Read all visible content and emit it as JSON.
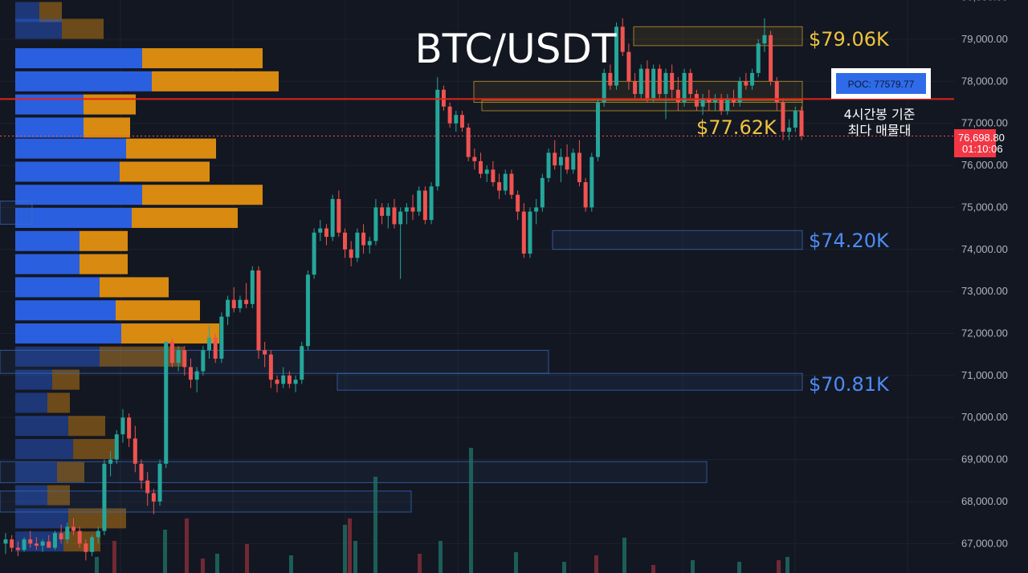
{
  "chart_data": {
    "type": "candlestick",
    "title": "BTC/USDT",
    "ylim": [
      66600,
      80050
    ],
    "y_ticks": [
      "80,000.00",
      "79,000.00",
      "78,000.00",
      "77,000.00",
      "76,000.00",
      "75,000.00",
      "74,000.00",
      "73,000.00",
      "72,000.00",
      "71,000.00",
      "70,000.00",
      "69,000.00",
      "68,000.00",
      "67,000.00"
    ],
    "y_tick_values": [
      80000,
      79000,
      78000,
      77000,
      76000,
      75000,
      74000,
      73000,
      72000,
      71000,
      70000,
      69000,
      68000,
      67000
    ],
    "current_price": {
      "label": "76,698.80",
      "timer": "01:10:06",
      "value": 76698.8
    },
    "poc": {
      "label": "POC: 77579.77",
      "value": 77579.77
    },
    "annotation": [
      "4시간봉 기준",
      "최다 매물대"
    ],
    "levels": [
      {
        "label": "$79.06K",
        "value": 79060,
        "color": "#f0c33c"
      },
      {
        "label": "$77.62K",
        "value": 77620,
        "color": "#f0c33c"
      },
      {
        "label": "$74.20K",
        "value": 74200,
        "color": "#4d8cf5"
      },
      {
        "label": "$70.81K",
        "value": 70810,
        "color": "#4d8cf5"
      }
    ],
    "candles": [
      [
        67.0,
        67.25,
        66.75,
        67.1
      ],
      [
        67.1,
        67.2,
        66.8,
        66.9
      ],
      [
        66.9,
        67.05,
        66.7,
        66.85
      ],
      [
        66.85,
        67.15,
        66.8,
        67.1
      ],
      [
        67.1,
        67.3,
        66.9,
        67.0
      ],
      [
        67.0,
        67.15,
        66.85,
        66.95
      ],
      [
        66.95,
        67.1,
        66.8,
        67.05
      ],
      [
        67.05,
        67.2,
        66.9,
        66.9
      ],
      [
        66.9,
        67.3,
        66.85,
        67.25
      ],
      [
        67.25,
        67.45,
        67.0,
        67.1
      ],
      [
        67.1,
        67.5,
        67.0,
        67.4
      ],
      [
        67.4,
        67.6,
        67.2,
        67.3
      ],
      [
        67.3,
        67.4,
        66.9,
        67.0
      ],
      [
        67.0,
        67.1,
        66.6,
        66.8
      ],
      [
        66.8,
        67.2,
        66.7,
        67.15
      ],
      [
        67.15,
        67.4,
        67.0,
        67.3
      ],
      [
        67.3,
        69.0,
        67.2,
        68.9
      ],
      [
        68.9,
        69.2,
        68.6,
        69.0
      ],
      [
        69.0,
        69.7,
        68.9,
        69.6
      ],
      [
        69.6,
        70.2,
        69.4,
        70.0
      ],
      [
        70.0,
        70.1,
        69.3,
        69.5
      ],
      [
        69.5,
        69.8,
        68.7,
        68.9
      ],
      [
        68.9,
        69.0,
        68.3,
        68.5
      ],
      [
        68.5,
        68.7,
        67.9,
        68.2
      ],
      [
        68.2,
        68.3,
        67.7,
        68.0
      ],
      [
        68.0,
        69.0,
        67.9,
        68.9
      ],
      [
        68.9,
        71.8,
        68.8,
        71.8
      ],
      [
        71.8,
        71.9,
        71.2,
        71.3
      ],
      [
        71.3,
        71.7,
        71.1,
        71.6
      ],
      [
        71.6,
        71.7,
        71.0,
        71.2
      ],
      [
        71.2,
        71.4,
        70.7,
        70.9
      ],
      [
        70.9,
        71.2,
        70.6,
        71.1
      ],
      [
        71.1,
        71.7,
        71.0,
        71.6
      ],
      [
        71.6,
        72.2,
        71.4,
        71.9
      ],
      [
        71.9,
        72.0,
        71.3,
        71.4
      ],
      [
        71.4,
        72.5,
        71.3,
        72.4
      ],
      [
        72.4,
        72.9,
        72.2,
        72.8
      ],
      [
        72.8,
        73.1,
        72.5,
        72.6
      ],
      [
        72.6,
        72.9,
        72.5,
        72.8
      ],
      [
        72.8,
        73.2,
        72.6,
        72.7
      ],
      [
        72.7,
        73.6,
        72.6,
        73.5
      ],
      [
        73.5,
        73.6,
        71.4,
        71.6
      ],
      [
        71.6,
        71.8,
        71.2,
        71.5
      ],
      [
        71.5,
        71.6,
        70.7,
        70.9
      ],
      [
        70.9,
        71.0,
        70.6,
        70.8
      ],
      [
        70.8,
        71.2,
        70.7,
        71.0
      ],
      [
        71.0,
        71.1,
        70.7,
        70.8
      ],
      [
        70.8,
        71.0,
        70.6,
        70.9
      ],
      [
        70.9,
        71.8,
        70.8,
        71.7
      ],
      [
        71.7,
        73.5,
        71.6,
        73.4
      ],
      [
        73.4,
        74.5,
        73.3,
        74.4
      ],
      [
        74.4,
        74.7,
        74.2,
        74.5
      ],
      [
        74.5,
        74.6,
        74.1,
        74.3
      ],
      [
        74.3,
        75.3,
        74.2,
        75.2
      ],
      [
        75.2,
        75.4,
        74.3,
        74.4
      ],
      [
        74.4,
        74.5,
        73.8,
        74.0
      ],
      [
        74.0,
        74.2,
        73.6,
        73.8
      ],
      [
        73.8,
        74.5,
        73.7,
        74.4
      ],
      [
        74.4,
        74.6,
        73.9,
        74.1
      ],
      [
        74.1,
        74.3,
        73.9,
        74.2
      ],
      [
        74.2,
        75.2,
        74.1,
        75.0
      ],
      [
        75.0,
        75.1,
        74.6,
        74.8
      ],
      [
        74.8,
        75.1,
        74.5,
        75.0
      ],
      [
        75.0,
        75.2,
        74.5,
        74.6
      ],
      [
        74.6,
        75.0,
        73.3,
        74.9
      ],
      [
        74.9,
        75.1,
        74.6,
        75.0
      ],
      [
        75.0,
        75.3,
        74.7,
        74.9
      ],
      [
        74.9,
        75.5,
        74.8,
        75.4
      ],
      [
        75.4,
        75.5,
        74.6,
        74.7
      ],
      [
        74.7,
        75.6,
        74.6,
        75.5
      ],
      [
        75.5,
        78.1,
        75.4,
        77.8
      ],
      [
        77.8,
        77.9,
        77.3,
        77.4
      ],
      [
        77.4,
        77.5,
        76.9,
        77.0
      ],
      [
        77.0,
        77.3,
        76.8,
        77.2
      ],
      [
        77.2,
        77.3,
        76.8,
        76.9
      ],
      [
        76.9,
        77.0,
        76.1,
        76.2
      ],
      [
        76.2,
        76.4,
        75.9,
        76.1
      ],
      [
        76.1,
        76.3,
        75.7,
        75.8
      ],
      [
        75.8,
        76.0,
        75.6,
        75.9
      ],
      [
        75.9,
        76.1,
        75.5,
        75.6
      ],
      [
        75.6,
        75.8,
        75.2,
        75.4
      ],
      [
        75.4,
        75.9,
        75.3,
        75.8
      ],
      [
        75.8,
        75.9,
        75.2,
        75.3
      ],
      [
        75.3,
        75.4,
        74.7,
        74.9
      ],
      [
        74.9,
        75.1,
        73.8,
        73.9
      ],
      [
        73.9,
        75.0,
        73.8,
        74.9
      ],
      [
        74.9,
        75.2,
        74.6,
        75.0
      ],
      [
        75.0,
        75.8,
        74.9,
        75.7
      ],
      [
        75.7,
        76.4,
        75.6,
        76.3
      ],
      [
        76.3,
        76.6,
        75.9,
        76.0
      ],
      [
        76.0,
        76.4,
        75.6,
        76.2
      ],
      [
        76.2,
        76.5,
        75.8,
        75.9
      ],
      [
        75.9,
        76.4,
        75.8,
        76.3
      ],
      [
        76.3,
        76.6,
        75.5,
        75.6
      ],
      [
        75.6,
        75.7,
        74.9,
        75.0
      ],
      [
        75.0,
        76.3,
        74.9,
        76.2
      ],
      [
        76.2,
        77.6,
        76.1,
        77.5
      ],
      [
        77.5,
        78.3,
        77.4,
        78.2
      ],
      [
        78.2,
        78.4,
        77.8,
        77.9
      ],
      [
        77.9,
        79.4,
        77.8,
        79.3
      ],
      [
        79.3,
        79.5,
        78.6,
        78.7
      ],
      [
        78.7,
        78.9,
        77.8,
        78.0
      ],
      [
        78.0,
        78.2,
        77.6,
        77.7
      ],
      [
        77.7,
        78.4,
        77.6,
        78.3
      ],
      [
        78.3,
        78.5,
        77.5,
        77.6
      ],
      [
        77.6,
        78.4,
        77.5,
        78.3
      ],
      [
        78.3,
        78.4,
        77.6,
        77.7
      ],
      [
        77.7,
        78.3,
        77.1,
        78.2
      ],
      [
        78.2,
        78.4,
        77.6,
        77.8
      ],
      [
        77.8,
        78.1,
        77.3,
        77.5
      ],
      [
        77.5,
        78.3,
        77.4,
        78.2
      ],
      [
        78.2,
        78.3,
        77.6,
        77.7
      ],
      [
        77.7,
        77.8,
        77.3,
        77.4
      ],
      [
        77.4,
        77.7,
        77.2,
        77.6
      ],
      [
        77.6,
        77.8,
        77.3,
        77.5
      ],
      [
        77.5,
        77.7,
        77.3,
        77.6
      ],
      [
        77.6,
        77.7,
        77.2,
        77.3
      ],
      [
        77.3,
        77.7,
        77.2,
        77.6
      ],
      [
        77.6,
        77.8,
        77.4,
        77.5
      ],
      [
        77.5,
        78.1,
        77.4,
        78.0
      ],
      [
        78.0,
        78.2,
        77.8,
        77.9
      ],
      [
        77.9,
        78.3,
        77.8,
        78.2
      ],
      [
        78.2,
        79.0,
        78.1,
        78.9
      ],
      [
        78.9,
        79.5,
        78.7,
        79.1
      ],
      [
        79.1,
        79.2,
        77.9,
        78.0
      ],
      [
        78.0,
        78.1,
        77.3,
        77.5
      ],
      [
        77.5,
        77.6,
        76.6,
        76.8
      ],
      [
        76.8,
        77.1,
        76.6,
        76.9
      ],
      [
        76.9,
        77.4,
        76.8,
        77.3
      ],
      [
        77.3,
        77.4,
        76.6,
        76.7
      ]
    ],
    "volume_profile": [
      {
        "price": 79.65,
        "buy": 30,
        "sell": 28,
        "dim": true
      },
      {
        "price": 79.25,
        "buy": 58,
        "sell": 52,
        "dim": true
      },
      {
        "price": 78.55,
        "buy": 158,
        "sell": 150,
        "dim": false
      },
      {
        "price": 78.0,
        "buy": 170,
        "sell": 158,
        "dim": false
      },
      {
        "price": 77.45,
        "buy": 85,
        "sell": 65,
        "dim": false
      },
      {
        "price": 76.9,
        "buy": 85,
        "sell": 58,
        "dim": false
      },
      {
        "price": 76.4,
        "buy": 138,
        "sell": 112,
        "dim": false
      },
      {
        "price": 75.85,
        "buy": 130,
        "sell": 112,
        "dim": false
      },
      {
        "price": 75.3,
        "buy": 158,
        "sell": 150,
        "dim": false
      },
      {
        "price": 74.75,
        "buy": 145,
        "sell": 132,
        "dim": false
      },
      {
        "price": 74.2,
        "buy": 80,
        "sell": 60,
        "dim": false
      },
      {
        "price": 73.65,
        "buy": 80,
        "sell": 60,
        "dim": false
      },
      {
        "price": 73.1,
        "buy": 105,
        "sell": 86,
        "dim": false
      },
      {
        "price": 72.55,
        "buy": 125,
        "sell": 105,
        "dim": false
      },
      {
        "price": 72.0,
        "buy": 132,
        "sell": 122,
        "dim": false
      },
      {
        "price": 71.45,
        "buy": 105,
        "sell": 105,
        "dim": true
      },
      {
        "price": 70.9,
        "buy": 46,
        "sell": 34,
        "dim": true
      },
      {
        "price": 70.35,
        "buy": 40,
        "sell": 28,
        "dim": true
      },
      {
        "price": 69.8,
        "buy": 66,
        "sell": 46,
        "dim": true
      },
      {
        "price": 69.25,
        "buy": 72,
        "sell": 52,
        "dim": true
      },
      {
        "price": 68.7,
        "buy": 52,
        "sell": 34,
        "dim": true
      },
      {
        "price": 68.15,
        "buy": 40,
        "sell": 28,
        "dim": true
      },
      {
        "price": 67.6,
        "buy": 66,
        "sell": 72,
        "dim": true
      },
      {
        "price": 67.05,
        "buy": 60,
        "sell": 46,
        "dim": true
      }
    ]
  }
}
